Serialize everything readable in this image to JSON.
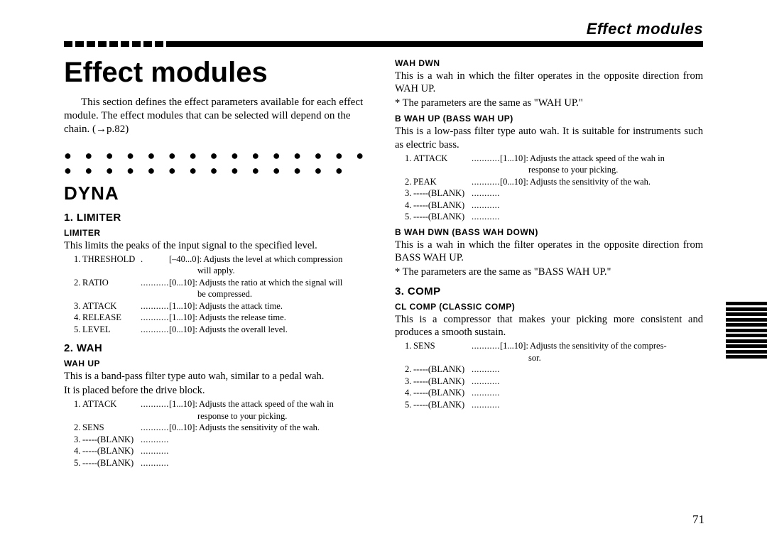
{
  "running_header": "Effect modules",
  "title": "Effect modules",
  "intro": "This section defines the effect parameters available for each effect module. The effect modules that can be selected will depend on the chain. (→p.82)",
  "dots": "● ● ● ● ● ● ● ● ● ● ● ● ● ● ● ● ● ● ● ● ● ● ● ● ● ● ● ● ●",
  "section_dyna": "DYNA",
  "limiter_h3": "1. LIMITER",
  "limiter_label": "LIMITER",
  "limiter_desc": "This limits the peaks of the input signal to the specified level.",
  "limiter_params": [
    {
      "n": "1.",
      "name": "THRESHOLD",
      "dots": ".",
      "range": "[–40...0]:",
      "desc": "Adjusts the level at which compression"
    },
    {
      "cont": "will apply."
    },
    {
      "n": "2.",
      "name": "RATIO",
      "dots": ".................",
      "range": "[0...10]:",
      "desc": "Adjusts the ratio at which the signal will"
    },
    {
      "cont": "be compressed."
    },
    {
      "n": "3.",
      "name": "ATTACK",
      "dots": "............",
      "range": "[1...10]:",
      "desc": "Adjusts the attack time."
    },
    {
      "n": "4.",
      "name": "RELEASE",
      "dots": "...........",
      "range": "[1...10]:",
      "desc": "Adjusts the release time."
    },
    {
      "n": "5.",
      "name": "LEVEL",
      "dots": ".................",
      "range": "[0...10]:",
      "desc": "Adjusts the overall level."
    }
  ],
  "wah_h3": "2. WAH",
  "wahup_label": "WAH UP",
  "wahup_desc1": "This is a band-pass filter type auto wah, similar to a pedal wah.",
  "wahup_desc2": "It is placed before the drive block.",
  "wahup_params": [
    {
      "n": "1.",
      "name": "ATTACK",
      "dots": "............",
      "range": "[1...10]:",
      "desc": "Adjusts the attack speed of the wah in"
    },
    {
      "cont": "response to your picking."
    },
    {
      "n": "2.",
      "name": "SENS",
      "dots": "....................",
      "range": "[0...10]:",
      "desc": "Adjusts the sensitivity of the wah."
    },
    {
      "n": "3.",
      "name": "-----(BLANK)",
      "dots": "...................",
      "range": "",
      "desc": ""
    },
    {
      "n": "4.",
      "name": "-----(BLANK)",
      "dots": "...................",
      "range": "",
      "desc": ""
    },
    {
      "n": "5.",
      "name": "-----(BLANK)",
      "dots": "...................",
      "range": "",
      "desc": ""
    }
  ],
  "wahdwn_label": "WAH DWN",
  "wahdwn_desc": "This is a wah in which the filter operates in the opposite direction from WAH UP.",
  "wahdwn_note": "*  The parameters are the same as \"WAH UP.\"",
  "bwahup_label": "B WAH UP (BASS WAH UP)",
  "bwahup_desc": "This is a low-pass filter type auto wah. It is suitable for instruments such as electric bass.",
  "bwahup_params": [
    {
      "n": "1.",
      "name": "ATTACK",
      "dots": "............",
      "range": "[1...10]:",
      "desc": "Adjusts the attack speed of the wah in"
    },
    {
      "cont": "response to your picking."
    },
    {
      "n": "2.",
      "name": "PEAK",
      "dots": "...................",
      "range": "[0...10]:",
      "desc": "Adjusts the sensitivity of the wah."
    },
    {
      "n": "3.",
      "name": "-----(BLANK)",
      "dots": "...................",
      "range": "",
      "desc": ""
    },
    {
      "n": "4.",
      "name": "-----(BLANK)",
      "dots": "...................",
      "range": "",
      "desc": ""
    },
    {
      "n": "5.",
      "name": "-----(BLANK)",
      "dots": "...................",
      "range": "",
      "desc": ""
    }
  ],
  "bwahdwn_label": "B WAH DWN (BASS WAH DOWN)",
  "bwahdwn_desc": "This is a wah in which the filter operates in the opposite direction from BASS WAH UP.",
  "bwahdwn_note": "*  The parameters are the same as \"BASS WAH UP.\"",
  "comp_h3": "3. COMP",
  "clcomp_label": "CL COMP (CLASSIC COMP)",
  "clcomp_desc": "This is a compressor that makes your picking more consistent and produces a smooth sustain.",
  "clcomp_params": [
    {
      "n": "1.",
      "name": "SENS",
      "dots": "....................",
      "range": "[1...10]:",
      "desc": "Adjusts the sensitivity of the compres-"
    },
    {
      "cont": "sor."
    },
    {
      "n": "2.",
      "name": "-----(BLANK)",
      "dots": "...................",
      "range": "",
      "desc": ""
    },
    {
      "n": "3.",
      "name": "-----(BLANK)",
      "dots": "...................",
      "range": "",
      "desc": ""
    },
    {
      "n": "4.",
      "name": "-----(BLANK)",
      "dots": "...................",
      "range": "",
      "desc": ""
    },
    {
      "n": "5.",
      "name": "-----(BLANK)",
      "dots": "...................",
      "range": "",
      "desc": ""
    }
  ],
  "page_number": "71"
}
